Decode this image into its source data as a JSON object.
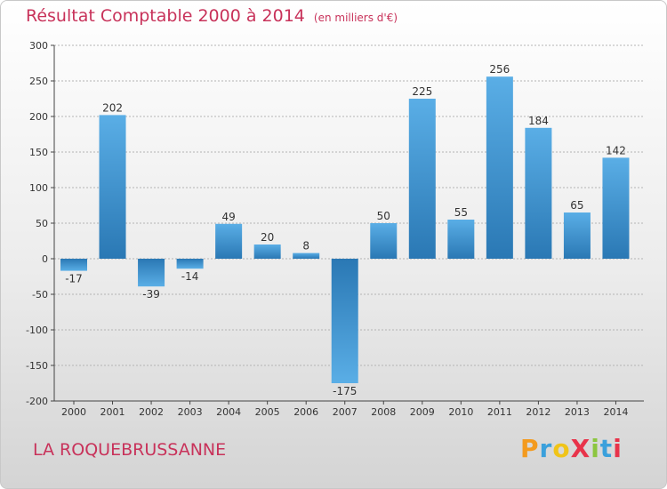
{
  "chart_data": {
    "type": "bar",
    "title": "Résultat Comptable 2000 à 2014",
    "subtitle": "(en milliers d'€)",
    "categories": [
      "2000",
      "2001",
      "2002",
      "2003",
      "2004",
      "2005",
      "2006",
      "2007",
      "2008",
      "2009",
      "2010",
      "2011",
      "2012",
      "2013",
      "2014"
    ],
    "values": [
      -17,
      202,
      -39,
      -14,
      49,
      20,
      8,
      -175,
      50,
      225,
      55,
      256,
      184,
      65,
      142
    ],
    "value_labels": [
      "-17",
      "202",
      "-39",
      "-14",
      "49",
      "20",
      "8",
      "-175",
      "50",
      "225",
      "55",
      "256",
      "184",
      "65",
      "142"
    ],
    "ylim": [
      -200,
      300
    ],
    "yticks": [
      300,
      250,
      200,
      150,
      100,
      50,
      0,
      -50,
      -100,
      -150,
      -200
    ],
    "ytick_labels": [
      "300",
      "250",
      "200",
      "150",
      "100",
      "50",
      "0",
      "-50",
      "-100",
      "-150",
      "-200"
    ],
    "xlabel": "",
    "ylabel": "",
    "grid": true,
    "legend": "none",
    "colors": {
      "bar_light": "#5aaee6",
      "bar_dark": "#2a78b4",
      "grid": "#b4b4b4",
      "axis": "#444444",
      "title": "#c8325a"
    }
  },
  "footer": {
    "location": "LA ROQUEBRUSSANNE",
    "brand": "ProXiti",
    "brand_letters": [
      {
        "ch": "P",
        "color": "#f39a1e"
      },
      {
        "ch": "r",
        "color": "#3aa0dc"
      },
      {
        "ch": "o",
        "color": "#f0c419"
      },
      {
        "ch": "X",
        "color": "#e8334a"
      },
      {
        "ch": "i",
        "color": "#8cc63f"
      },
      {
        "ch": "t",
        "color": "#3aa0dc"
      },
      {
        "ch": "i",
        "color": "#e8334a"
      }
    ]
  }
}
